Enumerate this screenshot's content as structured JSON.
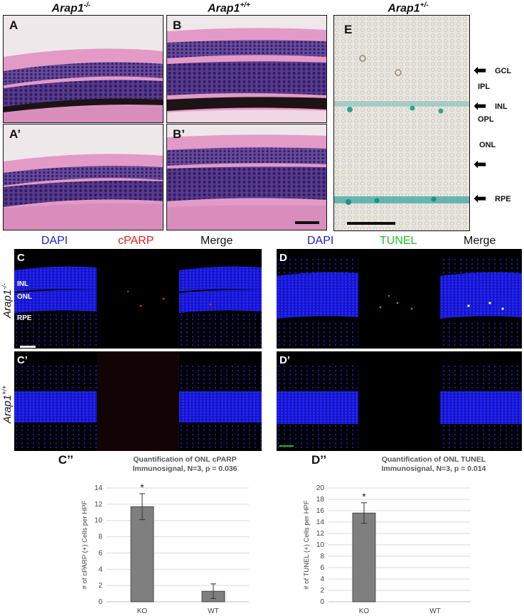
{
  "headers": {
    "ko": {
      "gene": "Arap1",
      "genotype": "-/-"
    },
    "wt": {
      "gene": "Arap1",
      "genotype": "+/+"
    },
    "het": {
      "gene": "Arap1",
      "genotype": "+/-"
    }
  },
  "panels": {
    "A": "A",
    "A_prime": "A’",
    "B": "B",
    "B_prime": "B’",
    "E": "E",
    "C": "C",
    "C_prime": "C’",
    "D": "D",
    "D_prime": "D’",
    "C_dprime": "C’’",
    "D_dprime": "D’’"
  },
  "retina_layers": [
    "GCL",
    "IPL",
    "INL",
    "OPL",
    "ONL",
    "RPE"
  ],
  "fluor_layers": [
    "INL",
    "ONL",
    "RPE"
  ],
  "channels": {
    "cparp_row": [
      "DAPI",
      "cPARP",
      "Merge"
    ],
    "tunel_row": [
      "DAPI",
      "TUNEL",
      "Merge"
    ]
  },
  "colors": {
    "dapi": "#1a1ad6",
    "cparp": "#e02020",
    "tunel": "#22c022",
    "bar": "#7f7f7f"
  },
  "chart_data": [
    {
      "type": "bar",
      "title": "Quantification of ONL cPARP Immunosignal, N=3, p = 0.036",
      "title_line1": "Quantification of ONL cPARP",
      "title_line2": "Immunosignal, N=3, p = 0.036",
      "ylabel": "# of cPARP (+) Cells per HPF",
      "categories": [
        "KO",
        "WT"
      ],
      "values": [
        11.7,
        1.3
      ],
      "errors": [
        1.6,
        0.9
      ],
      "ylim": [
        0,
        14
      ],
      "yticks": [
        0,
        2,
        4,
        6,
        8,
        10,
        12,
        14
      ],
      "significance": [
        "*",
        ""
      ],
      "grid": true
    },
    {
      "type": "bar",
      "title": "Quantification of ONL TUNEL Immunosignal, N=3, p = 0.014",
      "title_line1": "Quantification of ONL TUNEL",
      "title_line2": "Immunosignal, N=3, p = 0.014",
      "ylabel": "# of TUNEL (+) Cells per HPF",
      "categories": [
        "KO",
        "WT"
      ],
      "values": [
        15.6,
        0
      ],
      "errors": [
        1.8,
        0
      ],
      "ylim": [
        0,
        20
      ],
      "yticks": [
        0,
        2,
        4,
        6,
        8,
        10,
        12,
        14,
        16,
        18,
        20
      ],
      "significance": [
        "*",
        ""
      ],
      "grid": true
    }
  ]
}
